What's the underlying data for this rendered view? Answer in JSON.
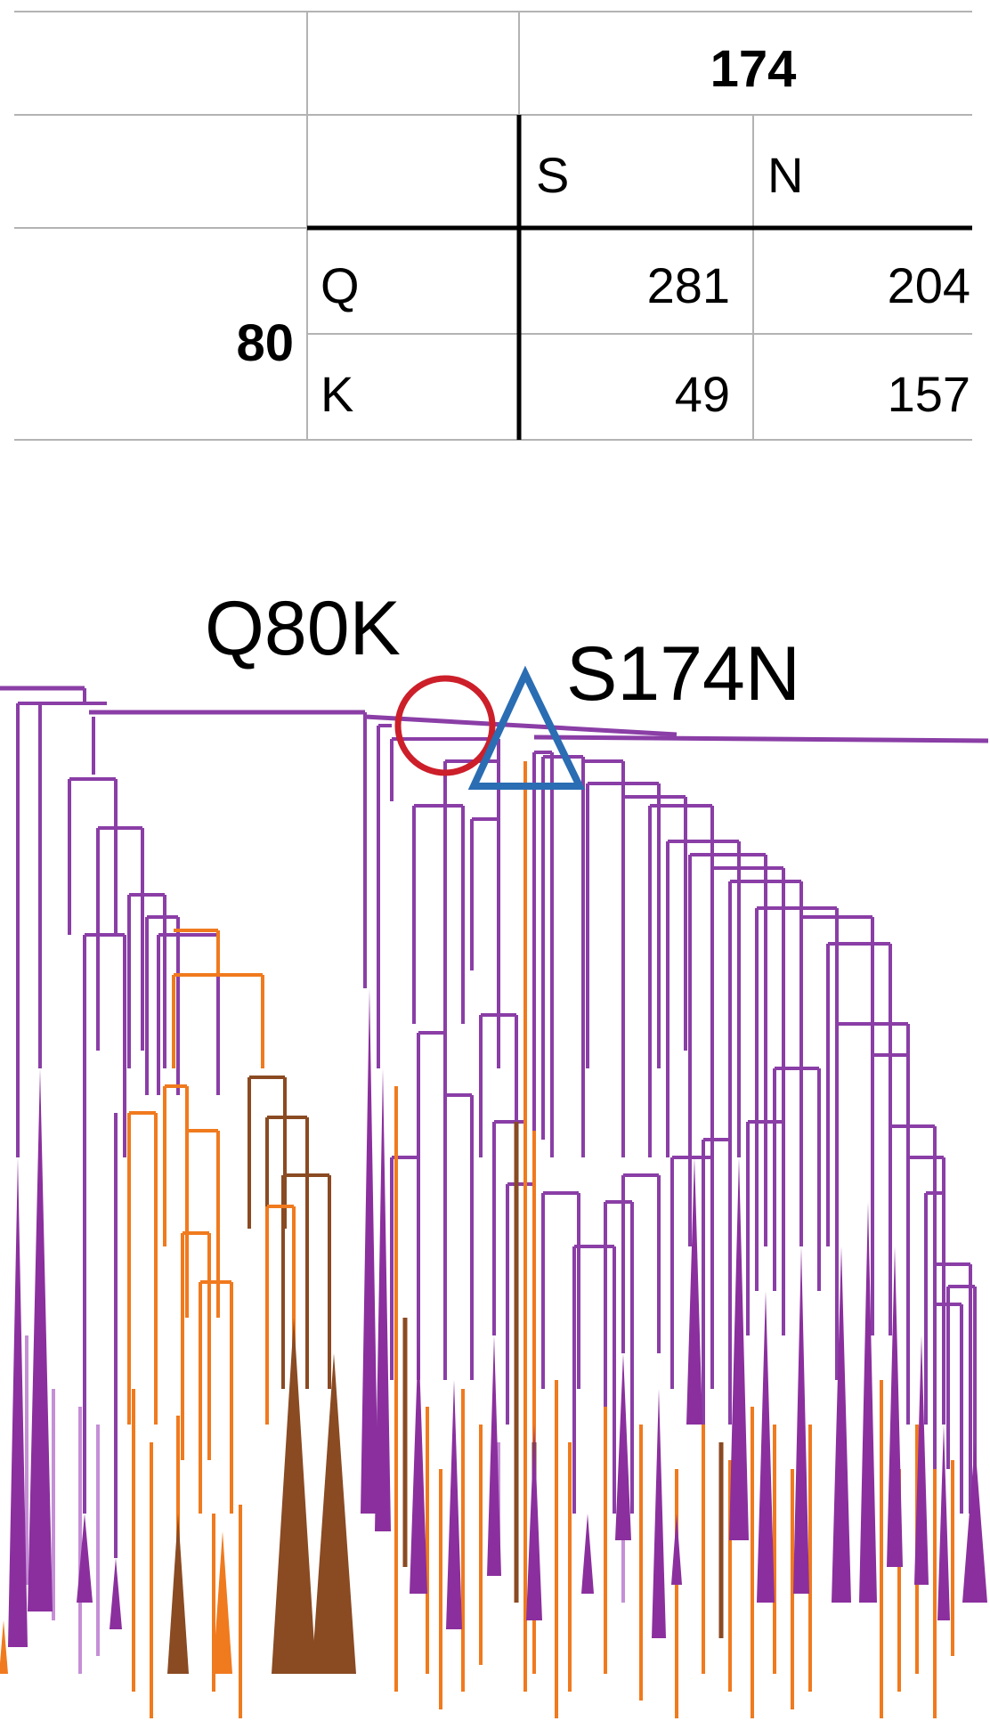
{
  "table": {
    "col_header": "174",
    "col_states": [
      "S",
      "N"
    ],
    "row_header": "80",
    "row_states": [
      "Q",
      "K"
    ],
    "counts": [
      [
        "281",
        "204"
      ],
      [
        "49",
        "157"
      ]
    ]
  },
  "annotations": {
    "mutation_a": "Q80K",
    "mutation_b": "S174N"
  },
  "colors": {
    "purple": "#8a3ea6",
    "purple_fill": "#8b2f9e",
    "light_purple": "#c58fd6",
    "orange": "#f07a1e",
    "brown": "#8a4a22",
    "circle": "#cc1f2a",
    "triangle": "#2a6db3",
    "grid": "#b3b3b3",
    "rule": "#000000"
  }
}
